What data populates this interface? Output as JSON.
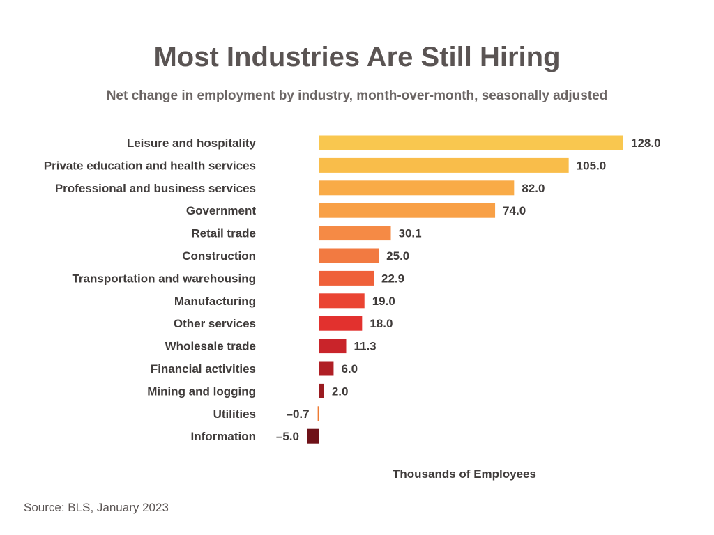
{
  "chart_data": {
    "type": "bar",
    "orientation": "horizontal",
    "title": "Most Industries Are Still Hiring",
    "subtitle": "Net change in employment by industry, month-over-month, seasonally adjusted",
    "categories": [
      "Leisure and hospitality",
      "Private education and health services",
      "Professional and business services",
      "Government",
      "Retail trade",
      "Construction",
      "Transportation and warehousing",
      "Manufacturing",
      "Other services",
      "Wholesale trade",
      "Financial activities",
      "Mining and logging",
      "Utilities",
      "Information"
    ],
    "values": [
      128.0,
      105.0,
      82.0,
      74.0,
      30.1,
      25.0,
      22.9,
      19.0,
      18.0,
      11.3,
      6.0,
      2.0,
      -0.7,
      -5.0
    ],
    "value_labels": [
      "128.0",
      "105.0",
      "82.0",
      "74.0",
      "30.1",
      "25.0",
      "22.9",
      "19.0",
      "18.0",
      "11.3",
      "6.0",
      "2.0",
      "–0.7",
      "–5.0"
    ],
    "bar_colors": [
      "#f9c74f",
      "#f9bd4a",
      "#f9ab47",
      "#f8a046",
      "#f58a45",
      "#f27a41",
      "#ef6039",
      "#ea4432",
      "#e2312e",
      "#c9242a",
      "#b01f25",
      "#9a1b20",
      "#ee7b33",
      "#6e1118"
    ],
    "xlabel": "Thousands of Employees",
    "ylabel": "",
    "xlim": [
      -5.0,
      128.0
    ],
    "grid": false,
    "legend": "none"
  },
  "source": "Source: BLS, January 2023"
}
